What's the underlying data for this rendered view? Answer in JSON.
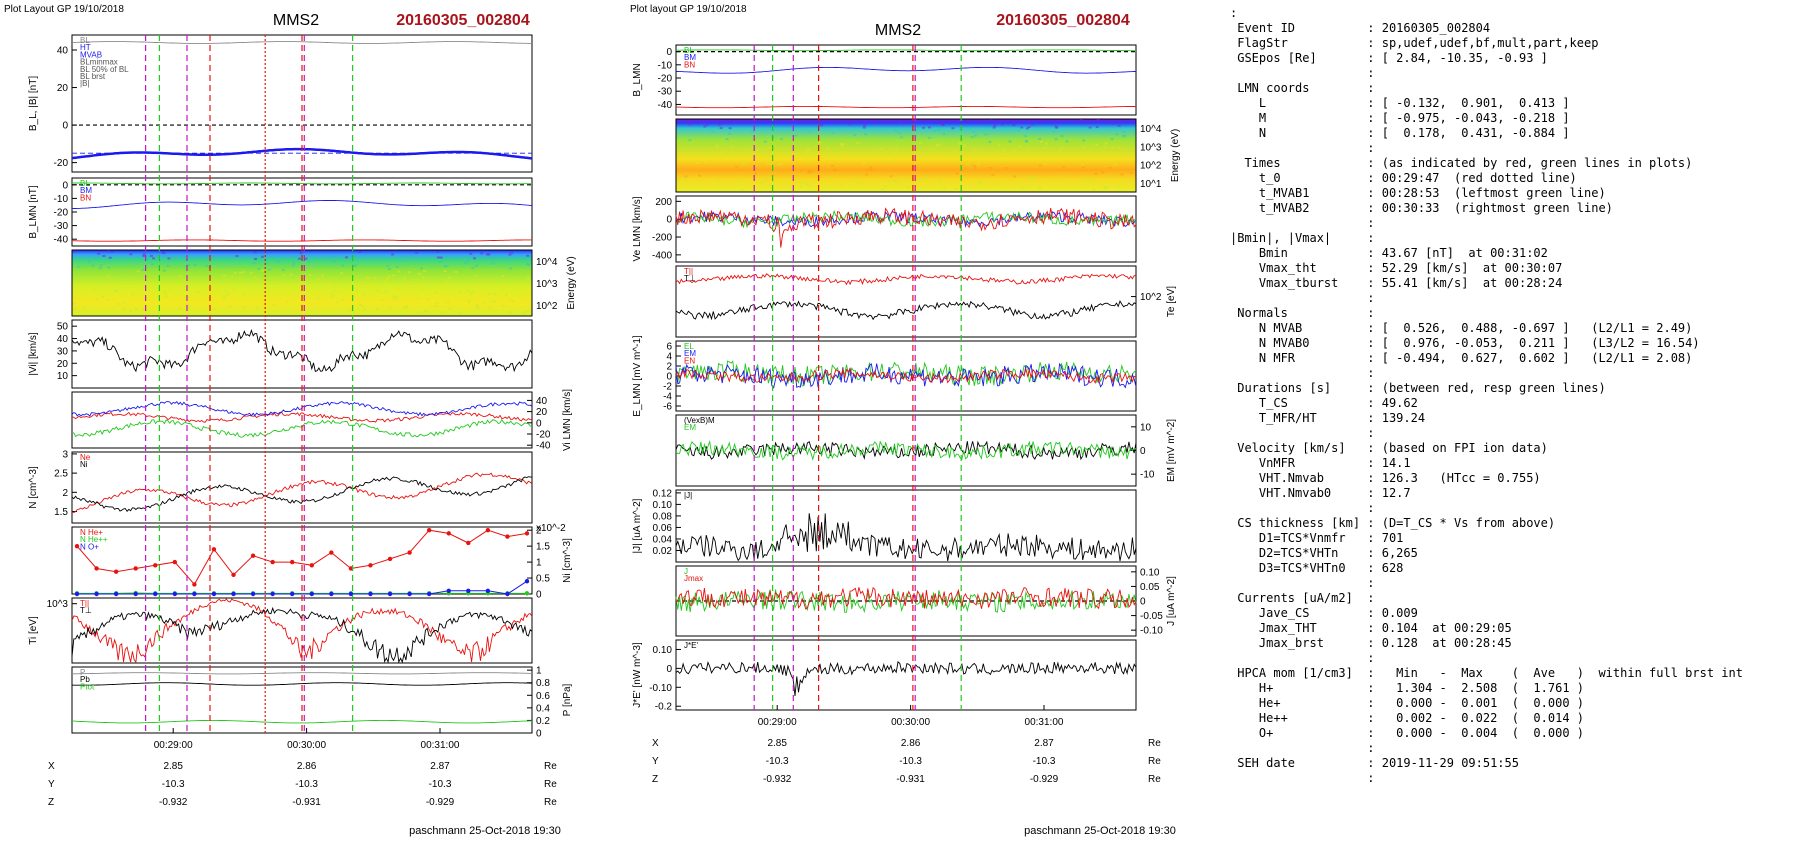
{
  "left_figure": {
    "header": "Plot Layout GP 19/10/2018",
    "title": "MMS2",
    "event": "20160305_002804",
    "footer": "paschmann 25-Oct-2018 19:30",
    "time_ticks": [
      "00:29:00",
      "00:30:00",
      "00:31:00"
    ],
    "coord_table": {
      "rows": [
        {
          "label": "X",
          "values": [
            "2.85",
            "2.86",
            "2.87"
          ],
          "unit": "Re"
        },
        {
          "label": "Y",
          "values": [
            "-10.3",
            "-10.3",
            "-10.3"
          ],
          "unit": "Re"
        },
        {
          "label": "Z",
          "values": [
            "-0.932",
            "-0.931",
            "-0.929"
          ],
          "unit": "Re"
        }
      ]
    }
  },
  "right_figure": {
    "header": "Plot layout GP 19/10/2018",
    "title": "MMS2",
    "event": "20160305_002804",
    "footer": "paschmann 25-Oct-2018 19:30",
    "time_ticks": [
      "00:29:00",
      "00:30:00",
      "00:31:00"
    ],
    "coord_table": {
      "rows": [
        {
          "label": "X",
          "values": [
            "2.85",
            "2.86",
            "2.87"
          ],
          "unit": "Re"
        },
        {
          "label": "Y",
          "values": [
            "-10.3",
            "-10.3",
            "-10.3"
          ],
          "unit": "Re"
        },
        {
          "label": "Z",
          "values": [
            "-0.932",
            "-0.931",
            "-0.929"
          ],
          "unit": "Re"
        }
      ]
    }
  },
  "colors": {
    "red": "#e8120f",
    "green": "#22c81e",
    "blue": "#1b1bf0",
    "magenta": "#c018c8",
    "black": "#000000",
    "gray": "#8a8a8a",
    "title_red": "#a8141c"
  },
  "chart_data": [
    {
      "type": "line",
      "id": "left-bl",
      "ylabel": "B_L, |B| [nT]",
      "ylim": [
        -25,
        48
      ],
      "yticks": [
        -20,
        0,
        20,
        40
      ],
      "legend": [
        "BL",
        "HT",
        "MVAB",
        "BLminmax",
        "BL 50% of BL",
        "BL brst",
        "|B|"
      ],
      "series": [
        {
          "name": "|B|",
          "color": "gray",
          "level": 44,
          "amp": 0.5
        },
        {
          "name": "BL",
          "color": "blue",
          "level": -17,
          "amp": 1.2,
          "trend": 3
        },
        {
          "name": "BL 50% of BL",
          "color": "blue",
          "level": -15,
          "dashed": true,
          "flat": true
        }
      ],
      "hlines": [
        0
      ]
    },
    {
      "type": "line",
      "id": "left-blmn",
      "ylabel": "B_LMN [nT]",
      "ylim": [
        -45,
        5
      ],
      "yticks": [
        -40,
        -30,
        -20,
        -10,
        0
      ],
      "legend": [
        "BL",
        "BM",
        "BN"
      ],
      "series": [
        {
          "name": "BL",
          "color": "green",
          "level": 1,
          "amp": 0.3
        },
        {
          "name": "BM",
          "color": "blue",
          "level": -16,
          "amp": 1.5,
          "trend": 3
        },
        {
          "name": "BN",
          "color": "red",
          "level": -41,
          "amp": 0.5
        }
      ],
      "hlines": [
        0
      ]
    },
    {
      "type": "heatmap",
      "id": "left-ion-spec",
      "ylabel": "Energy (eV)",
      "yticks": [
        "10^4",
        "10^3",
        "10^2"
      ]
    },
    {
      "type": "line",
      "id": "left-vi",
      "ylabel": "|Vi| [km/s]",
      "ylim": [
        0,
        55
      ],
      "yticks": [
        10,
        20,
        30,
        40,
        50
      ],
      "series": [
        {
          "name": "|Vi|",
          "color": "black",
          "level": 30,
          "amp": 12,
          "noise": 4,
          "wave": 4
        }
      ]
    },
    {
      "type": "line",
      "id": "left-vilmn",
      "ylabel": "Vi LMN [km/s]",
      "ylim": [
        -45,
        55
      ],
      "yticks": [
        40,
        20,
        0,
        -20,
        -40
      ],
      "series": [
        {
          "name": "ViL",
          "color": "red",
          "level": 10,
          "amp": 6,
          "noise": 3
        },
        {
          "name": "ViM",
          "color": "blue",
          "level": 25,
          "amp": 10,
          "noise": 3
        },
        {
          "name": "ViN",
          "color": "green",
          "level": -10,
          "amp": 12,
          "noise": 4
        }
      ]
    },
    {
      "type": "line",
      "id": "left-n",
      "ylabel": "N [cm^-3]",
      "ylim": [
        1.2,
        3.05
      ],
      "yticks": [
        1.5,
        2.0,
        2.5,
        3.0
      ],
      "legend": [
        "Ne",
        "Ni"
      ],
      "series": [
        {
          "name": "Ne",
          "color": "red",
          "level": 2.0,
          "amp": 0.25,
          "noise": 0.05,
          "rise": 0.55
        },
        {
          "name": "Ni",
          "color": "black",
          "level": 2.0,
          "amp": 0.25,
          "noise": 0.05,
          "rise": 0.55
        }
      ]
    },
    {
      "type": "scatter",
      "id": "left-hpca",
      "ylabel": "Ni [cm^-3]",
      "ymult": "x10^-2",
      "ylim": [
        0,
        2.1
      ],
      "yticks": [
        0.0,
        0.5,
        1.0,
        1.5,
        2.0
      ],
      "legend": [
        "N He+",
        "N He++",
        "N O+"
      ],
      "series": [
        {
          "name": "N He++",
          "color": "red",
          "values": [
            1.5,
            0.8,
            0.7,
            0.8,
            0.9,
            1.0,
            0.3,
            1.4,
            0.6,
            1.2,
            1.0,
            1.0,
            0.9,
            1.3,
            0.8,
            0.9,
            1.1,
            1.3,
            2.0,
            1.9,
            1.6,
            2.0,
            1.8,
            1.9
          ]
        },
        {
          "name": "N He+",
          "color": "green",
          "values": [
            0.02,
            0.02,
            0.02,
            0.03,
            0.02,
            0.02,
            0.02,
            0.02,
            0.02,
            0.02,
            0.02,
            0.02,
            0.02,
            0.02,
            0.02,
            0.02,
            0.02,
            0.02,
            0.02,
            0.02,
            0.02,
            0.02,
            0.02,
            0.02
          ]
        },
        {
          "name": "N O+",
          "color": "blue",
          "values": [
            0.0,
            0.0,
            0.0,
            0.0,
            0.0,
            0.0,
            0.0,
            0.0,
            0.0,
            0.0,
            0.0,
            0.0,
            0.0,
            0.0,
            0.0,
            0.0,
            0.0,
            0.0,
            0.0,
            0.1,
            0.1,
            0.1,
            0.0,
            0.4
          ]
        }
      ]
    },
    {
      "type": "line",
      "id": "left-ti",
      "ylabel": "Ti [eV]",
      "ylim": [
        150,
        1200
      ],
      "yticks": [
        "10^3"
      ],
      "log": true,
      "legend": [
        "T||",
        "T⊥"
      ],
      "series": [
        {
          "name": "T||",
          "color": "red",
          "level": 500,
          "amp": 300,
          "noise": 80,
          "bump": [
            0.25,
            0.5,
            500
          ]
        },
        {
          "name": "T⊥",
          "color": "black",
          "level": 450,
          "amp": 250,
          "noise": 80,
          "bump": [
            0.25,
            0.5,
            500
          ]
        }
      ]
    },
    {
      "type": "line",
      "id": "left-p",
      "ylabel": "P [nPa]",
      "ylim": [
        0,
        1.05
      ],
      "yticks": [
        0.0,
        0.2,
        0.4,
        0.6,
        0.8,
        1.0
      ],
      "legend": [
        "P",
        "Pb",
        "Ptot"
      ],
      "series": [
        {
          "name": "Ptot",
          "color": "gray",
          "level": 0.95,
          "amp": 0.01
        },
        {
          "name": "Pb",
          "color": "black",
          "level": 0.78,
          "amp": 0.02
        },
        {
          "name": "P",
          "color": "green",
          "level": 0.18,
          "amp": 0.02
        }
      ]
    },
    {
      "type": "line",
      "id": "right-blmn",
      "ylabel": "B_LMN",
      "ylim": [
        -48,
        5
      ],
      "yticks": [
        0,
        -10,
        -20,
        -30,
        -40
      ],
      "legend": [
        "BL",
        "BM",
        "BN"
      ],
      "series": [
        {
          "name": "BL",
          "color": "green",
          "level": 1,
          "amp": 0.3
        },
        {
          "name": "BM",
          "color": "blue",
          "level": -16,
          "amp": 1.5,
          "trend": 3
        },
        {
          "name": "BN",
          "color": "red",
          "level": -42,
          "amp": 0.5
        }
      ],
      "hlines": [
        0
      ]
    },
    {
      "type": "heatmap",
      "id": "right-e-spec",
      "ylabel": "Energy (eV)",
      "yticks": [
        "10^4",
        "10^3",
        "10^2",
        "10^1"
      ]
    },
    {
      "type": "line",
      "id": "right-ve",
      "ylabel": "Ve LMN [km/s]",
      "ylim": [
        -480,
        260
      ],
      "yticks": [
        200,
        0,
        -200,
        -400
      ],
      "series": [
        {
          "name": "VeL",
          "color": "blue",
          "level": 0,
          "amp": 30,
          "noise": 60
        },
        {
          "name": "VeM",
          "color": "green",
          "level": 0,
          "amp": 30,
          "noise": 60
        },
        {
          "name": "VeN",
          "color": "red",
          "level": 0,
          "amp": 40,
          "noise": 90,
          "spike": [
            0.23,
            -300
          ]
        }
      ]
    },
    {
      "type": "line",
      "id": "right-te",
      "ylabel": "Te [eV]",
      "ylim": [
        40,
        200
      ],
      "yticks": [
        "10^2"
      ],
      "log": true,
      "legend": [
        "T||",
        "T⊥"
      ],
      "series": [
        {
          "name": "T||",
          "color": "red",
          "level": 150,
          "amp": 10,
          "noise": 8
        },
        {
          "name": "T⊥",
          "color": "black",
          "level": 75,
          "amp": 10,
          "noise": 6
        }
      ]
    },
    {
      "type": "line",
      "id": "right-e",
      "ylabel": "E_LMN [mV m^-1]",
      "ylim": [
        -7,
        7
      ],
      "yticks": [
        6,
        4,
        2,
        0,
        -2,
        -4,
        -6
      ],
      "legend": [
        "EL",
        "EM",
        "EN"
      ],
      "series": [
        {
          "name": "EM",
          "color": "green",
          "level": 0.5,
          "amp": 0.5,
          "noise": 2
        },
        {
          "name": "EL",
          "color": "blue",
          "level": 0,
          "amp": 0.5,
          "noise": 2
        },
        {
          "name": "EN",
          "color": "red",
          "level": 0,
          "amp": 0.5,
          "noise": 1
        }
      ]
    },
    {
      "type": "line",
      "id": "right-em",
      "ylabel": "EM [mV m^-2]",
      "ylim": [
        -15,
        15
      ],
      "yticks": [
        10,
        0,
        -10
      ],
      "legend": [
        "(VexB)M",
        "EM"
      ],
      "series": [
        {
          "name": "(VexB)M",
          "color": "black",
          "level": 0,
          "amp": 1,
          "noise": 3
        },
        {
          "name": "EM",
          "color": "green",
          "level": 0,
          "amp": 1,
          "noise": 3
        }
      ]
    },
    {
      "type": "line",
      "id": "right-j",
      "ylabel": "|J| [uA m^-2]",
      "ylim": [
        0,
        0.125
      ],
      "yticks": [
        0.02,
        0.04,
        0.06,
        0.08,
        0.1,
        0.12
      ],
      "legend": [
        "|J|"
      ],
      "series": [
        {
          "name": "|J|",
          "color": "black",
          "level": 0.025,
          "amp": 0.005,
          "noise": 0.02,
          "burst": [
            0.3,
            0.06
          ]
        }
      ]
    },
    {
      "type": "line",
      "id": "right-jmax",
      "ylabel": "J [uA m^-2]",
      "ylim": [
        -0.12,
        0.12
      ],
      "yticks": [
        0.1,
        0.05,
        0.0,
        -0.05,
        -0.1
      ],
      "legend": [
        "J",
        "Jmax"
      ],
      "series": [
        {
          "name": "J M",
          "color": "green",
          "level": 0,
          "amp": 0.005,
          "noise": 0.035
        },
        {
          "name": "J L",
          "color": "red",
          "level": 0.01,
          "amp": 0.005,
          "noise": 0.035
        }
      ],
      "hlines": [
        0
      ]
    },
    {
      "type": "line",
      "id": "right-jdote",
      "ylabel": "J*E' [nW m^-3]",
      "ylim": [
        -0.22,
        0.15
      ],
      "yticks": [
        0.1,
        0.0,
        -0.1,
        -0.2
      ],
      "legend": [
        "J*E'"
      ],
      "series": [
        {
          "name": "J*E'",
          "color": "black",
          "level": 0,
          "amp": 0.005,
          "noise": 0.03,
          "spike": [
            0.26,
            -0.15
          ]
        }
      ]
    }
  ],
  "text_panel": [
    ":",
    " Event ID          : 20160305_002804",
    " FlagStr           : sp,udef,udef,bf,mult,part,keep",
    " GSEpos [Re]       : [ 2.84, -10.35, -0.93 ]",
    "                   :",
    " LMN coords        :",
    "    L              : [ -0.132,  0.901,  0.413 ]",
    "    M              : [ -0.975, -0.043, -0.218 ]",
    "    N              : [  0.178,  0.431, -0.884 ]",
    "                   :",
    "  Times            : (as indicated by red, green lines in plots)",
    "    t_0            : 00:29:47  (red dotted line)",
    "    t_MVAB1        : 00:28:53  (leftmost green line)",
    "    t_MVAB2        : 00:30:33  (rightmost green line)",
    "                   :",
    "|Bmin|, |Vmax|     :",
    "    Bmin           : 43.67 [nT]  at 00:31:02",
    "    Vmax_tht       : 52.29 [km/s]  at 00:30:07",
    "    Vmax_tburst    : 55.41 [km/s]  at 00:28:24",
    "                   :",
    " Normals           :",
    "    N MVAB         : [  0.526,  0.488, -0.697 ]   (L2/L1 = 2.49)",
    "    N MVAB0        : [  0.976, -0.053,  0.211 ]   (L3/L2 = 16.54)",
    "    N MFR          : [ -0.494,  0.627,  0.602 ]   (L2/L1 = 2.08)",
    "                   :",
    " Durations [s]     : (between red, resp green lines)",
    "    T_CS           : 49.62",
    "    T_MFR/HT       : 139.24",
    "                   :",
    " Velocity [km/s]   : (based on FPI ion data)",
    "    VnMFR          : 14.1",
    "    VHT.Nmvab      : 126.3   (HTcc = 0.755)",
    "    VHT.Nmvab0     : 12.7",
    "                   :",
    " CS thickness [km] : (D=T_CS * Vs from above)",
    "    D1=TCS*Vnmfr   : 701",
    "    D2=TCS*VHTn    : 6,265",
    "    D3=TCS*VHTn0   : 628",
    "                   :",
    " Currents [uA/m2]  :",
    "    Jave_CS        : 0.009",
    "    Jmax_THT       : 0.104  at 00:29:05",
    "    Jmax_brst      : 0.128  at 00:28:45",
    "                   :",
    " HPCA mom [1/cm3]  :   Min   -  Max    (  Ave   )  within full brst int",
    "    H+             :   1.304 -  2.508  (  1.761 )",
    "    He+            :   0.000 -  0.001  (  0.000 )",
    "    He++           :   0.002 -  0.022  (  0.014 )",
    "    O+             :   0.000 -  0.004  (  0.000 )",
    "                   :",
    " SEH date          : 2019-11-29 09:51:55",
    "                   :"
  ]
}
